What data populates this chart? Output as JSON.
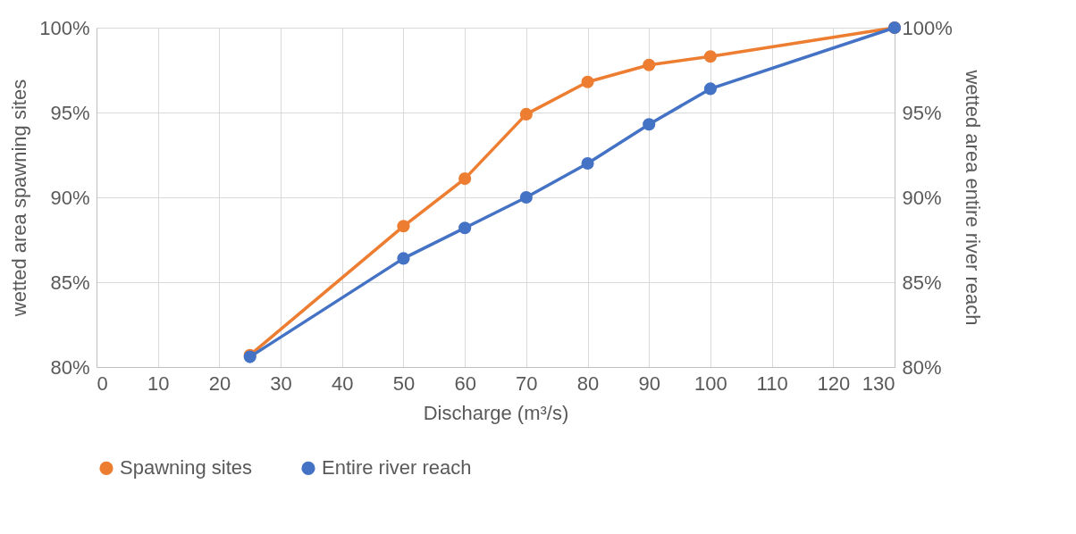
{
  "chart_data": {
    "type": "line",
    "xlabel": "Discharge (m³/s)",
    "ylabel": "wetted area spawning sites",
    "y2label": "wetted area entire river reach",
    "x": [
      25,
      50,
      60,
      70,
      80,
      90,
      100,
      130
    ],
    "series": [
      {
        "name": "Spawning sites",
        "color": "#ed7d31",
        "values": [
          80.7,
          88.3,
          91.1,
          94.9,
          96.8,
          97.8,
          98.3,
          100
        ]
      },
      {
        "name": "Entire river reach",
        "color": "#4472c4",
        "axis": "y2",
        "values": [
          80.6,
          86.4,
          88.2,
          90.0,
          92.0,
          94.3,
          96.4,
          100
        ]
      }
    ],
    "xlim": [
      0,
      130
    ],
    "xticks": [
      0,
      10,
      20,
      30,
      40,
      50,
      60,
      70,
      80,
      90,
      100,
      110,
      120,
      130
    ],
    "ylim": [
      80,
      100
    ],
    "yticks": [
      {
        "value": 80,
        "label": "80%"
      },
      {
        "value": 85,
        "label": "85%"
      },
      {
        "value": 90,
        "label": "90%"
      },
      {
        "value": 95,
        "label": "95%"
      },
      {
        "value": 100,
        "label": "100%"
      }
    ],
    "y2lim": [
      80,
      100
    ],
    "y2ticks": [
      {
        "value": 80,
        "label": "80%"
      },
      {
        "value": 85,
        "label": "85%"
      },
      {
        "value": 90,
        "label": "90%"
      },
      {
        "value": 95,
        "label": "95%"
      },
      {
        "value": 100,
        "label": "100%"
      }
    ],
    "grid": true,
    "legend": "bottom",
    "marker": "circle",
    "line_style": "solid"
  }
}
